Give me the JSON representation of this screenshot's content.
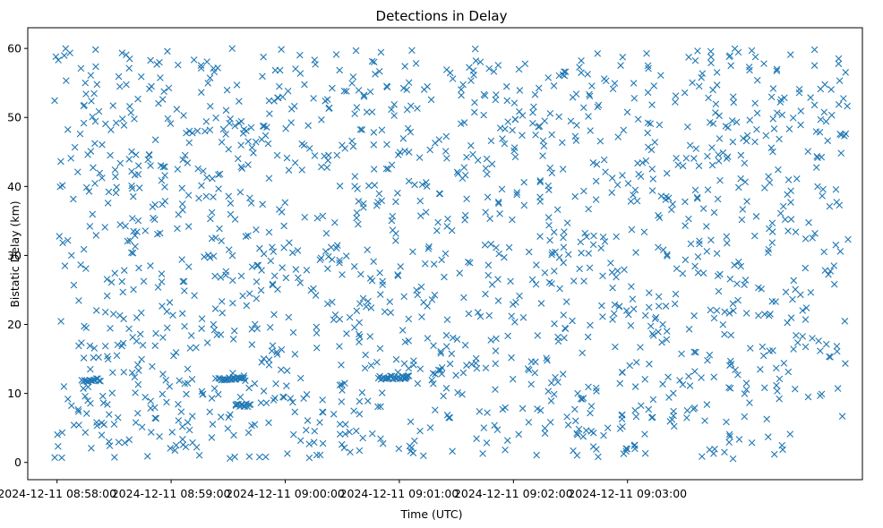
{
  "chart_data": {
    "type": "scatter",
    "title": "Detections in Delay",
    "xlabel": "Time (UTC)",
    "ylabel": "Bistatic Delay (km)",
    "marker": "x",
    "color": "#1f77b4",
    "x_unit": "seconds since 2024-12-11 08:57:00 UTC",
    "xlim": [
      44.6,
      483.5
    ],
    "ylim": [
      -2.5,
      63
    ],
    "x_ticks": [
      60,
      120,
      180,
      240,
      300,
      360
    ],
    "x_tick_labels": [
      "2024-12-11 08:58:00",
      "2024-12-11 08:59:00",
      "2024-12-11 09:00:00",
      "2024-12-11 09:01:00",
      "2024-12-11 09:02:00",
      "2024-12-11 09:03:00"
    ],
    "y_ticks": [
      0,
      10,
      20,
      30,
      40,
      50,
      60
    ],
    "y_tick_labels": [
      "0",
      "10",
      "20",
      "30",
      "40",
      "50",
      "60"
    ],
    "series": [
      {
        "name": "detections",
        "x_range": [
          58.5,
          476
        ],
        "y_range": [
          0.5,
          60
        ],
        "approx_count": 1600,
        "clusters": [
          {
            "x_start": 73,
            "x_end": 83,
            "y": 11.9
          },
          {
            "x_start": 145,
            "x_end": 159,
            "y": 12.1
          },
          {
            "x_start": 154,
            "x_end": 162,
            "y": 8.3
          },
          {
            "x_start": 229,
            "x_end": 245,
            "y": 12.3
          }
        ]
      }
    ]
  }
}
